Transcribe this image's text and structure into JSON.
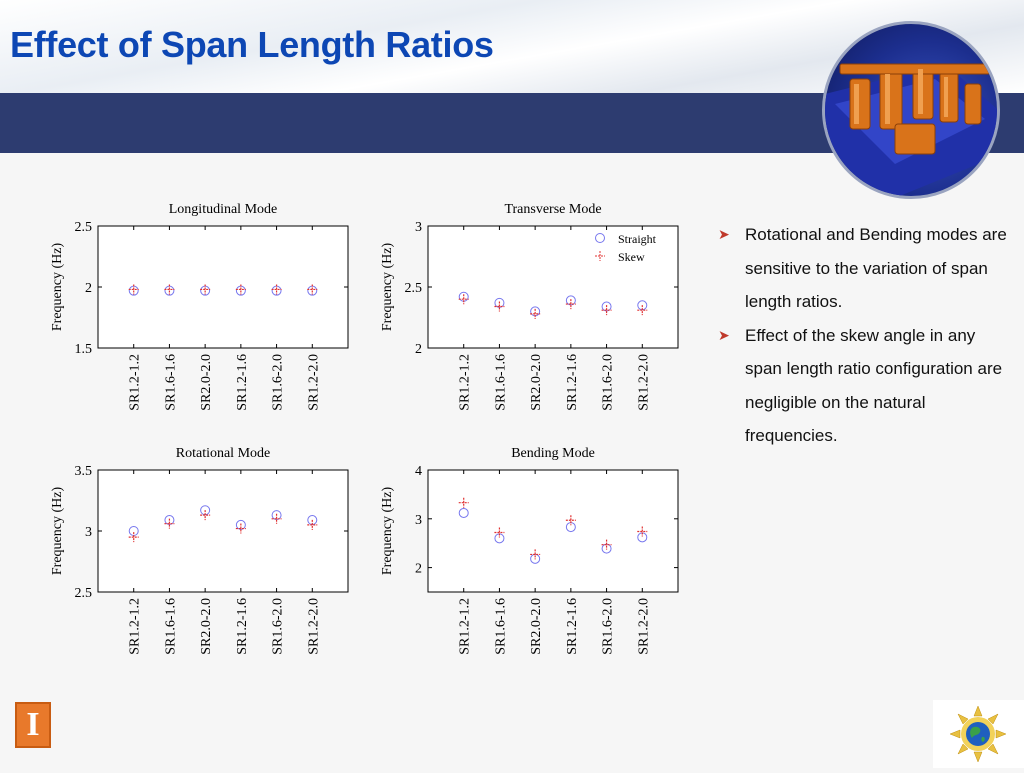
{
  "slide": {
    "title": "Effect of Span Length Ratios",
    "bullets": [
      "Rotational and Bending modes are sensitive to the variation of span length ratios.",
      "Effect of the skew angle in any span length ratio configuration are negligible on the natural frequencies."
    ],
    "logo_letter": "I"
  },
  "colors": {
    "title": "#0d47b4",
    "band": "#2d3c70",
    "straight": "#7777ee",
    "skew": "#e03030",
    "bullet_arrow": "#c0392b"
  },
  "legend": {
    "straight": "Straight",
    "skew": "Skew"
  },
  "chart_data": [
    {
      "type": "scatter",
      "title": "Longitudinal Mode",
      "xlabel": "",
      "ylabel": "Frequency (Hz)",
      "categories": [
        "SR1.2-1.2",
        "SR1.6-1.6",
        "SR2.0-2.0",
        "SR1.2-1.6",
        "SR1.6-2.0",
        "SR1.2-2.0"
      ],
      "ylim": [
        1.5,
        2.5
      ],
      "yticks": [
        "1.5",
        "2",
        "2.5"
      ],
      "series": [
        {
          "name": "Straight",
          "marker": "circle",
          "values": [
            1.97,
            1.97,
            1.97,
            1.97,
            1.97,
            1.97
          ]
        },
        {
          "name": "Skew",
          "marker": "dash-plus",
          "values": [
            1.98,
            1.98,
            1.98,
            1.98,
            1.98,
            1.98
          ]
        }
      ],
      "legend": false
    },
    {
      "type": "scatter",
      "title": "Transverse Mode",
      "xlabel": "",
      "ylabel": "Frequency (Hz)",
      "categories": [
        "SR1.2-1.2",
        "SR1.6-1.6",
        "SR2.0-2.0",
        "SR1.2-1.6",
        "SR1.6-2.0",
        "SR1.2-2.0"
      ],
      "ylim": [
        2,
        3
      ],
      "yticks": [
        "2",
        "2.5",
        "3"
      ],
      "series": [
        {
          "name": "Straight",
          "marker": "circle",
          "values": [
            2.42,
            2.37,
            2.3,
            2.39,
            2.34,
            2.35
          ]
        },
        {
          "name": "Skew",
          "marker": "dash-plus",
          "values": [
            2.4,
            2.34,
            2.28,
            2.36,
            2.31,
            2.31
          ]
        }
      ],
      "legend": "top-right"
    },
    {
      "type": "scatter",
      "title": "Rotational Mode",
      "xlabel": "",
      "ylabel": "Frequency (Hz)",
      "categories": [
        "SR1.2-1.2",
        "SR1.6-1.6",
        "SR2.0-2.0",
        "SR1.2-1.6",
        "SR1.6-2.0",
        "SR1.2-2.0"
      ],
      "ylim": [
        2.5,
        3.5
      ],
      "yticks": [
        "2.5",
        "3",
        "3.5"
      ],
      "series": [
        {
          "name": "Straight",
          "marker": "circle",
          "values": [
            3.0,
            3.09,
            3.17,
            3.05,
            3.13,
            3.09
          ]
        },
        {
          "name": "Skew",
          "marker": "dash-plus",
          "values": [
            2.95,
            3.06,
            3.13,
            3.02,
            3.1,
            3.05
          ]
        }
      ],
      "legend": false
    },
    {
      "type": "scatter",
      "title": "Bending Mode",
      "xlabel": "",
      "ylabel": "Frequency (Hz)",
      "categories": [
        "SR1.2-1.2",
        "SR1.6-1.6",
        "SR2.0-2.0",
        "SR1.2-1.6",
        "SR1.6-2.0",
        "SR1.2-2.0"
      ],
      "ylim": [
        1.5,
        4
      ],
      "yticks": [
        "2",
        "3",
        "4"
      ],
      "series": [
        {
          "name": "Straight",
          "marker": "circle",
          "values": [
            3.12,
            2.6,
            2.18,
            2.83,
            2.39,
            2.62
          ]
        },
        {
          "name": "Skew",
          "marker": "dash-plus",
          "values": [
            3.33,
            2.72,
            2.27,
            2.97,
            2.47,
            2.74
          ]
        }
      ],
      "legend": false
    }
  ]
}
